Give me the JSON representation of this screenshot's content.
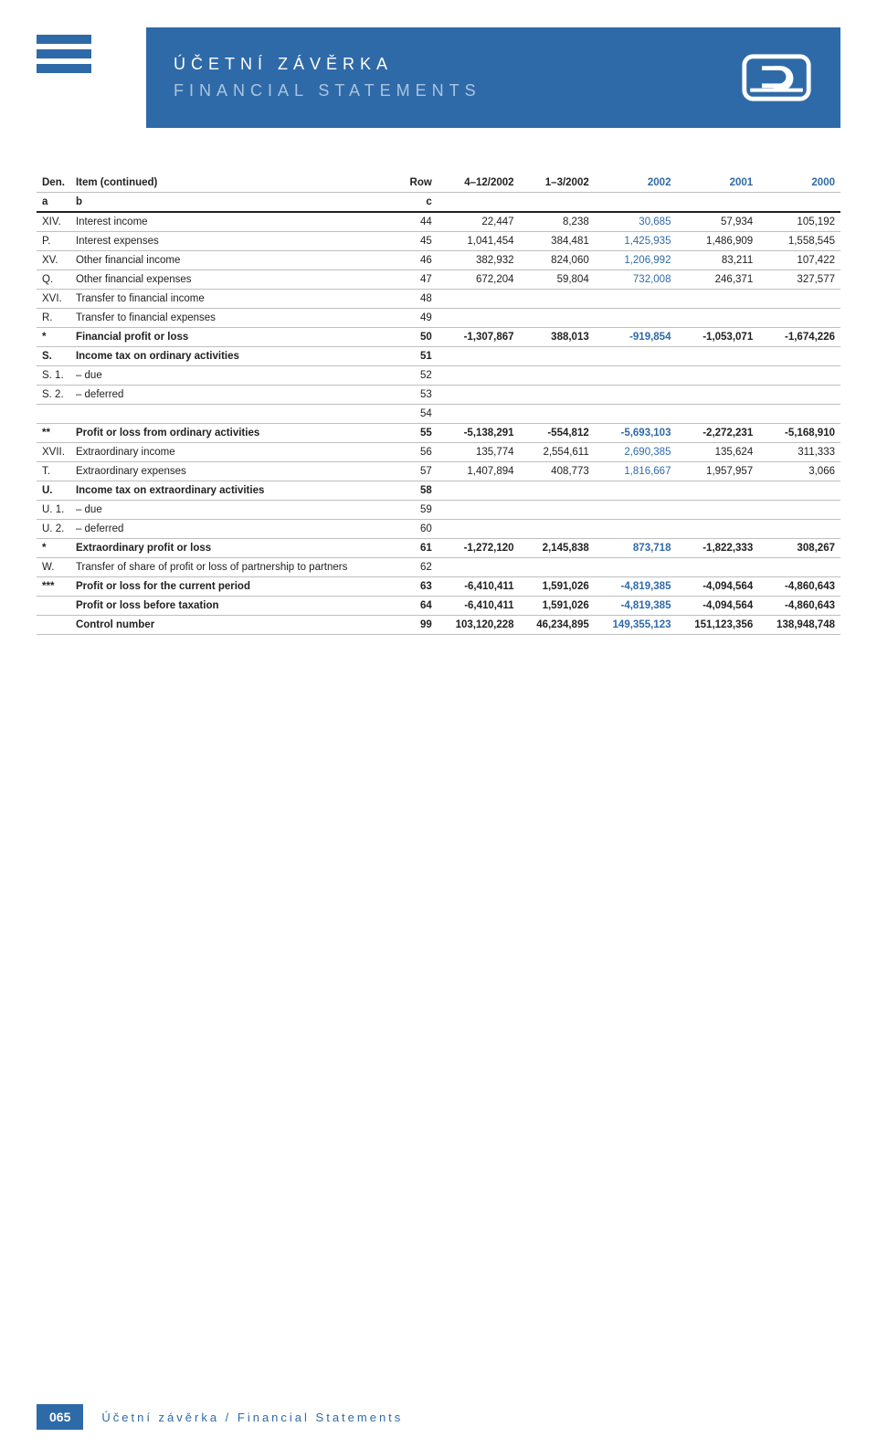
{
  "header": {
    "title1": "ÚČETNÍ ZÁVĚRKA",
    "title2": "FINANCIAL STATEMENTS",
    "band_color": "#2f6aa8",
    "title2_color": "#a9c5e0"
  },
  "table": {
    "head": {
      "den_a": "Den.",
      "den_b": "a",
      "item_a": "Item (continued)",
      "item_b": "b",
      "row_a": "Row",
      "row_b": "c",
      "c1": "4–12/2002",
      "c2": "1–3/2002",
      "c3": "2002",
      "c4": "2001",
      "c5": "2000"
    },
    "rows": [
      {
        "den": "XIV.",
        "item": "Interest income",
        "row": "44",
        "v": [
          "22,447",
          "8,238",
          "30,685",
          "57,934",
          "105,192"
        ],
        "bold": false
      },
      {
        "den": "P.",
        "item": "Interest expenses",
        "row": "45",
        "v": [
          "1,041,454",
          "384,481",
          "1,425,935",
          "1,486,909",
          "1,558,545"
        ],
        "bold": false
      },
      {
        "den": "XV.",
        "item": "Other financial income",
        "row": "46",
        "v": [
          "382,932",
          "824,060",
          "1,206,992",
          "83,211",
          "107,422"
        ],
        "bold": false
      },
      {
        "den": "Q.",
        "item": "Other financial expenses",
        "row": "47",
        "v": [
          "672,204",
          "59,804",
          "732,008",
          "246,371",
          "327,577"
        ],
        "bold": false
      },
      {
        "den": "XVI.",
        "item": "Transfer to financial income",
        "row": "48",
        "v": [
          "",
          "",
          "",
          "",
          ""
        ],
        "bold": false
      },
      {
        "den": "R.",
        "item": "Transfer to financial expenses",
        "row": "49",
        "v": [
          "",
          "",
          "",
          "",
          ""
        ],
        "bold": false
      },
      {
        "den": "*",
        "item": "Financial profit or loss",
        "row": "50",
        "v": [
          "-1,307,867",
          "388,013",
          "-919,854",
          "-1,053,071",
          "-1,674,226"
        ],
        "bold": true
      },
      {
        "den": "S.",
        "item": "Income tax on ordinary activities",
        "row": "51",
        "v": [
          "",
          "",
          "",
          "",
          ""
        ],
        "bold": true
      },
      {
        "den": "S. 1.",
        "item": "– due",
        "row": "52",
        "v": [
          "",
          "",
          "",
          "",
          ""
        ],
        "bold": false
      },
      {
        "den": "S. 2.",
        "item": "– deferred",
        "row": "53",
        "v": [
          "",
          "",
          "",
          "",
          ""
        ],
        "bold": false
      },
      {
        "den": "",
        "item": "",
        "row": "54",
        "v": [
          "",
          "",
          "",
          "",
          ""
        ],
        "bold": false
      },
      {
        "den": "**",
        "item": "Profit or loss from ordinary activities",
        "row": "55",
        "v": [
          "-5,138,291",
          "-554,812",
          "-5,693,103",
          "-2,272,231",
          "-5,168,910"
        ],
        "bold": true
      },
      {
        "den": "XVII.",
        "item": "Extraordinary income",
        "row": "56",
        "v": [
          "135,774",
          "2,554,611",
          "2,690,385",
          "135,624",
          "311,333"
        ],
        "bold": false
      },
      {
        "den": "T.",
        "item": "Extraordinary expenses",
        "row": "57",
        "v": [
          "1,407,894",
          "408,773",
          "1,816,667",
          "1,957,957",
          "3,066"
        ],
        "bold": false
      },
      {
        "den": "U.",
        "item": "Income tax on extraordinary activities",
        "row": "58",
        "v": [
          "",
          "",
          "",
          "",
          ""
        ],
        "bold": true
      },
      {
        "den": "U. 1.",
        "item": "– due",
        "row": "59",
        "v": [
          "",
          "",
          "",
          "",
          ""
        ],
        "bold": false
      },
      {
        "den": "U. 2.",
        "item": "– deferred",
        "row": "60",
        "v": [
          "",
          "",
          "",
          "",
          ""
        ],
        "bold": false
      },
      {
        "den": "*",
        "item": "Extraordinary profit or loss",
        "row": "61",
        "v": [
          "-1,272,120",
          "2,145,838",
          "873,718",
          "-1,822,333",
          "308,267"
        ],
        "bold": true
      },
      {
        "den": "W.",
        "item": "Transfer of share of profit or loss of partnership to partners",
        "row": "62",
        "v": [
          "",
          "",
          "",
          "",
          ""
        ],
        "bold": false
      },
      {
        "den": "***",
        "item": "Profit or loss for the current period",
        "row": "63",
        "v": [
          "-6,410,411",
          "1,591,026",
          "-4,819,385",
          "-4,094,564",
          "-4,860,643"
        ],
        "bold": true
      },
      {
        "den": "",
        "item": "Profit or loss before taxation",
        "row": "64",
        "v": [
          "-6,410,411",
          "1,591,026",
          "-4,819,385",
          "-4,094,564",
          "-4,860,643"
        ],
        "bold": true
      },
      {
        "den": "",
        "item": "Control number",
        "row": "99",
        "v": [
          "103,120,228",
          "46,234,895",
          "149,355,123",
          "151,123,356",
          "138,948,748"
        ],
        "bold": true
      }
    ],
    "blue_col_index": 2,
    "blue_header_cols": [
      2,
      3,
      4
    ],
    "text_color": "#222222",
    "blue_color": "#2f6aa8",
    "border_color": "#bfbfbf"
  },
  "footer": {
    "page_number": "065",
    "text": "Účetní závěrka  /  Financial Statements"
  }
}
